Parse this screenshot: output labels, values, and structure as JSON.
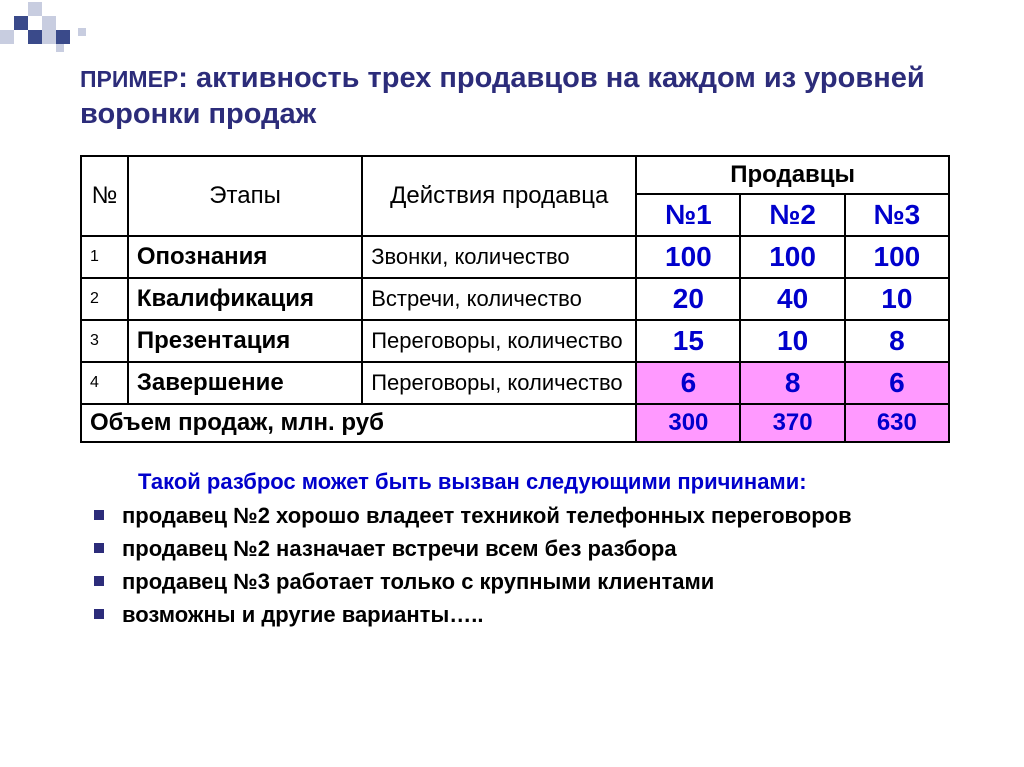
{
  "colors": {
    "title_color": "#2c2c7a",
    "value_color": "#0000cc",
    "highlight_bg": "#ff99ff",
    "border_color": "#000000",
    "bullet_color": "#2c2c7a",
    "corner_dark": "#3a4a8a",
    "corner_light": "#c8cde0"
  },
  "title_prefix": "ПРИМЕР",
  "title_rest": ": активность трех продавцов на каждом из уровней воронки продаж",
  "table": {
    "columns": {
      "num": "№",
      "stage": "Этапы",
      "action": "Действия продавца",
      "sellers_group": "Продавцы",
      "seller1": "№1",
      "seller2": "№2",
      "seller3": "№3"
    },
    "col_widths": {
      "num": 30,
      "stage": 230,
      "action": 300,
      "seller": 100
    },
    "rows": [
      {
        "n": "1",
        "stage": "Опознания",
        "action": "Звонки, количество",
        "v1": "100",
        "v2": "100",
        "v3": "100",
        "hl": false
      },
      {
        "n": "2",
        "stage": "Квалификация",
        "action": "Встречи, количество",
        "v1": "20",
        "v2": "40",
        "v3": "10",
        "hl": false
      },
      {
        "n": "3",
        "stage": "Презентация",
        "action": "Переговоры, количество",
        "v1": "15",
        "v2": "10",
        "v3": "8",
        "hl": false
      },
      {
        "n": "4",
        "stage": "Завершение",
        "action": "Переговоры, количество",
        "v1": "6",
        "v2": "8",
        "v3": "6",
        "hl": true
      }
    ],
    "footer": {
      "label": "Объем продаж, млн. руб",
      "v1": "300",
      "v2": "370",
      "v3": "630",
      "hl": true
    }
  },
  "notes": {
    "heading": "Такой разброс может быть вызван следующими причинами:",
    "bullets": [
      "продавец №2 хорошо владеет техникой телефонных переговоров",
      "продавец №2 назначает встречи всем без разбора",
      "продавец №3  работает только с крупными клиентами",
      "возможны и другие варианты….."
    ]
  },
  "fonts": {
    "title_size": 29,
    "header_size": 24,
    "value_size": 28,
    "body_size": 22,
    "row_num_size": 16
  }
}
